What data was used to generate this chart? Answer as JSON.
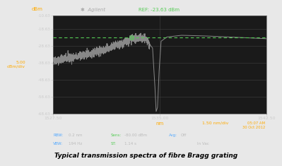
{
  "title": "Typical transmission spectra of fibre Bragg grating",
  "bg_color": "#e8e8e8",
  "plot_bg_color": "#1a1a1a",
  "xmin": 1527.5,
  "xmax": 1542.5,
  "ymin": -68.63,
  "ymax": -10.63,
  "ref_line_y": -23.63,
  "ref_label": "REF: -23.63 dBm",
  "ref_color": "#55cc55",
  "grid_color": "#404040",
  "signal_color": "#888888",
  "left_label": "dBm",
  "left_label_color": "#ffaa00",
  "scale_label": "5.00\ndBm/div",
  "scale_label_color": "#ffaa00",
  "xlabel_center": "nm",
  "xlabel_color": "#ffaa00",
  "xlabel_right": "1.50 nm/div",
  "time_label": "05:07 AM\n30 Oct 2012",
  "time_color": "#ffaa00",
  "agilent_color": "#aaaaaa",
  "marker_color": "#55cc55",
  "marker_x": 1533.0,
  "marker_y": -23.63,
  "bottom_label_color_key": "#55aaff",
  "bottom_label_color_val": "#aaaaaa",
  "bottom_label_color_key2": "#55cc55"
}
